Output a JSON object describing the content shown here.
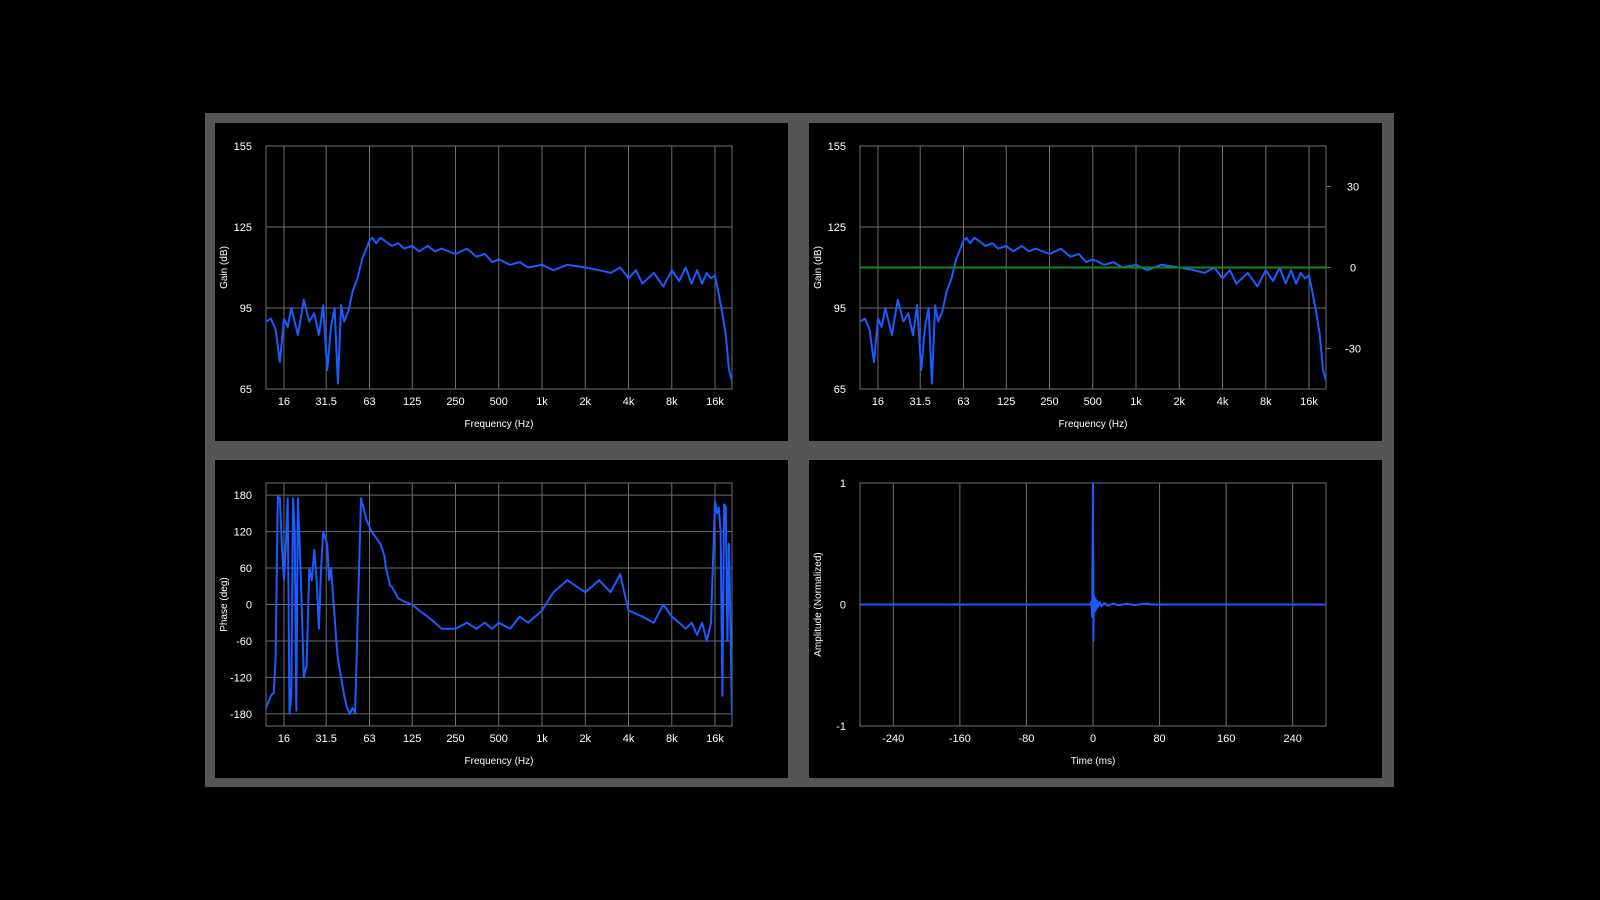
{
  "colors": {
    "background": "#000000",
    "frame": "#555555",
    "grid": "#6e6e6e",
    "trace": "#1a5cff",
    "reference": "#0f8a1f"
  },
  "chart_data": [
    {
      "type": "line",
      "x_scale": "log",
      "xlabel": "Frequency (Hz)",
      "ylabel": "Gain (dB)",
      "xlim": [
        12,
        21000
      ],
      "ylim": [
        65,
        155
      ],
      "x_ticks": [
        16,
        31.5,
        63,
        125,
        250,
        500,
        1000,
        2000,
        4000,
        8000,
        16000
      ],
      "x_tick_labels": [
        "16",
        "31.5",
        "63",
        "125",
        "250",
        "500",
        "1k",
        "2k",
        "4k",
        "8k",
        "16k"
      ],
      "y_ticks": [
        65,
        95,
        125,
        155
      ],
      "y_tick_labels": [
        "65",
        "95",
        "125",
        "155"
      ],
      "grid": true,
      "series": [
        {
          "color": "#1a5cff",
          "x": [
            12,
            13,
            14,
            15,
            16,
            17,
            18,
            20,
            22,
            24,
            26,
            28,
            30,
            32,
            34,
            36,
            38,
            40,
            42,
            45,
            48,
            52,
            56,
            60,
            63,
            66,
            70,
            75,
            80,
            90,
            100,
            110,
            125,
            140,
            160,
            180,
            200,
            250,
            300,
            350,
            400,
            450,
            500,
            600,
            700,
            800,
            1000,
            1200,
            1500,
            2000,
            2500,
            3000,
            3500,
            4000,
            4500,
            5000,
            6000,
            7000,
            8000,
            9000,
            10000,
            11000,
            12000,
            13000,
            14000,
            15000,
            16000,
            17000,
            18000,
            19000,
            20000,
            21000
          ],
          "y": [
            90,
            91,
            87,
            75,
            91,
            88,
            95,
            85,
            98,
            90,
            93,
            85,
            96,
            72,
            88,
            95,
            67,
            96,
            90,
            94,
            101,
            106,
            113,
            117,
            120,
            121,
            119,
            121,
            120,
            118,
            119,
            117,
            118,
            116,
            118,
            116,
            117,
            115,
            117,
            114,
            115,
            112,
            113,
            111,
            112,
            110,
            111,
            109,
            111,
            110,
            109,
            108,
            110,
            106,
            109,
            104,
            108,
            103,
            109,
            105,
            110,
            104,
            109,
            104,
            108,
            106,
            107,
            100,
            93,
            85,
            72,
            68
          ]
        }
      ]
    },
    {
      "type": "line",
      "x_scale": "log",
      "xlabel": "Frequency (Hz)",
      "ylabel": "Gain (dB)",
      "xlim": [
        12,
        21000
      ],
      "ylim": [
        65,
        155
      ],
      "y2lim": [
        -45,
        45
      ],
      "x_ticks": [
        16,
        31.5,
        63,
        125,
        250,
        500,
        1000,
        2000,
        4000,
        8000,
        16000
      ],
      "x_tick_labels": [
        "16",
        "31.5",
        "63",
        "125",
        "250",
        "500",
        "1k",
        "2k",
        "4k",
        "8k",
        "16k"
      ],
      "y_ticks": [
        65,
        95,
        125,
        155
      ],
      "y_tick_labels": [
        "65",
        "95",
        "125",
        "155"
      ],
      "y2_ticks": [
        30,
        0,
        -30
      ],
      "y2_tick_labels": [
        "30",
        "0",
        "-30"
      ],
      "grid": true,
      "series": [
        {
          "color": "#1a5cff",
          "x": [
            12,
            13,
            14,
            15,
            16,
            17,
            18,
            20,
            22,
            24,
            26,
            28,
            30,
            32,
            34,
            36,
            38,
            40,
            42,
            45,
            48,
            52,
            56,
            60,
            63,
            66,
            70,
            75,
            80,
            90,
            100,
            110,
            125,
            140,
            160,
            180,
            200,
            250,
            300,
            350,
            400,
            450,
            500,
            600,
            700,
            800,
            1000,
            1200,
            1500,
            2000,
            2500,
            3000,
            3500,
            4000,
            4500,
            5000,
            6000,
            7000,
            8000,
            9000,
            10000,
            11000,
            12000,
            13000,
            14000,
            15000,
            16000,
            17000,
            18000,
            19000,
            20000,
            21000
          ],
          "y": [
            90,
            91,
            87,
            75,
            91,
            88,
            95,
            85,
            98,
            90,
            93,
            85,
            96,
            72,
            88,
            95,
            67,
            96,
            90,
            94,
            101,
            106,
            113,
            117,
            120,
            121,
            119,
            121,
            120,
            118,
            119,
            117,
            118,
            116,
            118,
            116,
            117,
            115,
            117,
            114,
            115,
            112,
            113,
            111,
            112,
            110,
            111,
            109,
            111,
            110,
            109,
            108,
            110,
            106,
            109,
            104,
            108,
            103,
            109,
            105,
            110,
            104,
            109,
            104,
            108,
            106,
            107,
            100,
            93,
            85,
            72,
            68
          ]
        },
        {
          "color": "#0f8a1f",
          "axis": "right",
          "x": [
            12,
            21000
          ],
          "y": [
            0,
            0
          ]
        }
      ]
    },
    {
      "type": "line",
      "x_scale": "log",
      "xlabel": "Frequency (Hz)",
      "ylabel": "Phase (deg)",
      "xlim": [
        12,
        21000
      ],
      "ylim": [
        -200,
        200
      ],
      "x_ticks": [
        16,
        31.5,
        63,
        125,
        250,
        500,
        1000,
        2000,
        4000,
        8000,
        16000
      ],
      "x_tick_labels": [
        "16",
        "31.5",
        "63",
        "125",
        "250",
        "500",
        "1k",
        "2k",
        "4k",
        "8k",
        "16k"
      ],
      "y_ticks": [
        180,
        120,
        60,
        0,
        -60,
        -120,
        -180
      ],
      "y_tick_labels": [
        "180",
        "120",
        "60",
        "0",
        "-60",
        "-120",
        "-180"
      ],
      "grid": true,
      "series": [
        {
          "color": "#1a5cff",
          "x": [
            12,
            13,
            13.6,
            14,
            14.5,
            15,
            15.5,
            16,
            16.5,
            17,
            17.5,
            18,
            18.5,
            19,
            19.5,
            20,
            20.5,
            21,
            21.5,
            22,
            23,
            24,
            25,
            26,
            27,
            28,
            29,
            30,
            32,
            33,
            34,
            35,
            36,
            37,
            38,
            40,
            42,
            44,
            46,
            48,
            50,
            55,
            60,
            65,
            70,
            75,
            80,
            82,
            84,
            86,
            88,
            90,
            95,
            100,
            110,
            125,
            140,
            160,
            180,
            200,
            250,
            300,
            350,
            400,
            450,
            500,
            600,
            700,
            800,
            1000,
            1200,
            1500,
            2000,
            2500,
            3000,
            3500,
            4000,
            5000,
            6000,
            7000,
            8000,
            9000,
            10000,
            11000,
            12000,
            13000,
            14000,
            15000,
            16000,
            16500,
            17000,
            17500,
            18000,
            18500,
            19000,
            19500,
            20000,
            21000
          ],
          "y": [
            -170,
            -150,
            -145,
            -90,
            178,
            175,
            90,
            40,
            100,
            175,
            -180,
            -150,
            175,
            120,
            -175,
            175,
            110,
            40,
            -40,
            -120,
            -100,
            60,
            40,
            90,
            40,
            -40,
            60,
            120,
            100,
            40,
            60,
            20,
            -20,
            -60,
            -90,
            -120,
            -150,
            -170,
            -180,
            -170,
            -178,
            175,
            140,
            120,
            110,
            100,
            80,
            60,
            50,
            40,
            30,
            30,
            20,
            10,
            5,
            0,
            -10,
            -20,
            -30,
            -40,
            -40,
            -30,
            -40,
            -30,
            -40,
            -30,
            -40,
            -20,
            -30,
            -10,
            20,
            40,
            20,
            40,
            20,
            50,
            -10,
            -20,
            -30,
            0,
            -20,
            -30,
            -40,
            -30,
            -50,
            -30,
            -60,
            -30,
            170,
            150,
            160,
            120,
            -150,
            165,
            160,
            -60,
            100,
            -180
          ]
        }
      ]
    },
    {
      "type": "line",
      "xlabel": "Time (ms)",
      "ylabel": "Amplitude (Normalized)",
      "xlim": [
        -280,
        280
      ],
      "ylim": [
        -1,
        1
      ],
      "x_ticks": [
        -240,
        -160,
        -80,
        0,
        80,
        160,
        240
      ],
      "x_tick_labels": [
        "-240",
        "-160",
        "-80",
        "0",
        "80",
        "160",
        "240"
      ],
      "y_ticks": [
        1,
        0,
        -1
      ],
      "y_tick_labels": [
        "1",
        "0",
        "-1"
      ],
      "grid": true,
      "series": [
        {
          "color": "#1a5cff",
          "x": [
            -280,
            -3,
            -2,
            -1,
            0,
            0.5,
            1,
            2,
            3,
            4,
            5,
            6,
            8,
            10,
            14,
            18,
            24,
            30,
            40,
            50,
            60,
            66,
            68,
            80,
            120,
            200,
            280
          ],
          "y": [
            0,
            0,
            0.02,
            -0.1,
            1,
            -0.3,
            0.08,
            -0.06,
            0.05,
            -0.04,
            0.03,
            -0.02,
            0.02,
            -0.015,
            0.012,
            -0.01,
            0.008,
            -0.006,
            0.005,
            -0.004,
            0.003,
            0.01,
            0,
            0,
            0,
            0,
            0
          ]
        }
      ]
    }
  ]
}
